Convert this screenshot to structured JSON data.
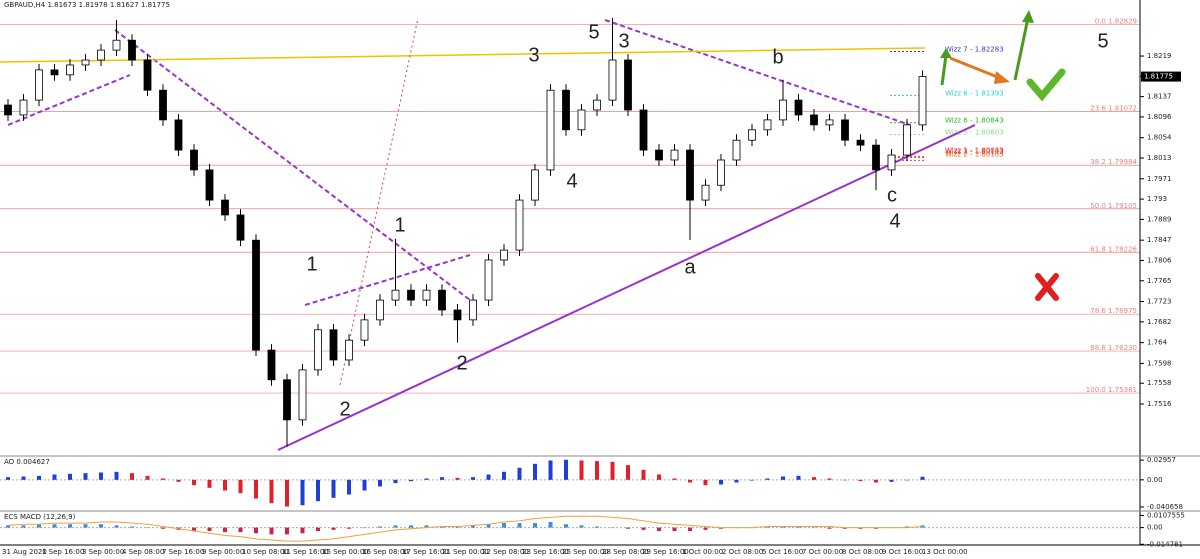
{
  "chart_data": {
    "type": "candlestick",
    "title": "GBPAUD,H4  1.81673 1.81978 1.81627 1.81775",
    "last_price": 1.81775,
    "up_color": "#ffffff",
    "down_color": "#000000",
    "ylim": [
      1.7413,
      1.8308
    ],
    "yticks": [
      1.8219,
      1.8178,
      1.8137,
      1.8096,
      1.8054,
      1.8013,
      1.7971,
      1.793,
      1.7889,
      1.7847,
      1.7806,
      1.7765,
      1.7723,
      1.7682,
      1.764,
      1.7598,
      1.7558,
      1.7516
    ],
    "open": [
      1.812,
      1.81,
      1.813,
      1.8191,
      1.8181,
      1.8201,
      1.8211,
      1.8231,
      1.8251,
      1.8211,
      1.815,
      1.809,
      1.8029,
      1.7989,
      1.7928,
      1.7898,
      1.7847,
      1.7625,
      1.7565,
      1.7484,
      1.7585,
      1.7666,
      1.7605,
      1.7645,
      1.7686,
      1.7726,
      1.7746,
      1.7726,
      1.7746,
      1.7706,
      1.7686,
      1.7726,
      1.7807,
      1.7827,
      1.7928,
      1.7989,
      1.815,
      1.807,
      1.811,
      1.813,
      1.8211,
      1.811,
      1.8029,
      1.8009,
      1.8029,
      1.7928,
      1.7958,
      1.8009,
      1.8049,
      1.807,
      1.809,
      1.813,
      1.81,
      1.808,
      1.809,
      1.8049,
      1.8039,
      1.7989,
      1.8019,
      1.808
    ],
    "high": [
      1.8132,
      1.8142,
      1.8203,
      1.8203,
      1.8213,
      1.8223,
      1.8243,
      1.8292,
      1.8263,
      1.8223,
      1.8162,
      1.8102,
      1.8041,
      1.8001,
      1.794,
      1.791,
      1.7859,
      1.7637,
      1.7577,
      1.7597,
      1.7678,
      1.7678,
      1.7657,
      1.7698,
      1.7738,
      1.785,
      1.7758,
      1.7758,
      1.7758,
      1.7718,
      1.7738,
      1.7819,
      1.7839,
      1.794,
      1.8001,
      1.8162,
      1.8162,
      1.8122,
      1.8142,
      1.8296,
      1.8223,
      1.8122,
      1.8041,
      1.8041,
      1.8041,
      1.797,
      1.8021,
      1.8061,
      1.8082,
      1.8102,
      1.8171,
      1.8142,
      1.8112,
      1.8102,
      1.8102,
      1.8061,
      1.8051,
      1.8031,
      1.8092,
      1.819
    ],
    "low": [
      1.8088,
      1.8088,
      1.8118,
      1.8169,
      1.8169,
      1.8189,
      1.8199,
      1.8219,
      1.8199,
      1.8138,
      1.8078,
      1.8017,
      1.7977,
      1.7916,
      1.7886,
      1.7835,
      1.7613,
      1.7553,
      1.743,
      1.7472,
      1.7573,
      1.7593,
      1.7593,
      1.7633,
      1.7674,
      1.7714,
      1.7714,
      1.7714,
      1.7694,
      1.764,
      1.7674,
      1.7714,
      1.7795,
      1.7815,
      1.7916,
      1.7977,
      1.8058,
      1.8058,
      1.8098,
      1.8118,
      1.8098,
      1.8017,
      1.7997,
      1.7997,
      1.7847,
      1.7916,
      1.7946,
      1.7997,
      1.8037,
      1.8058,
      1.8078,
      1.8088,
      1.8068,
      1.8068,
      1.8037,
      1.8027,
      1.7948,
      1.7977,
      1.8007,
      1.8068
    ],
    "close": [
      1.81,
      1.813,
      1.8191,
      1.8181,
      1.8201,
      1.8211,
      1.8231,
      1.8251,
      1.8211,
      1.815,
      1.809,
      1.8029,
      1.7989,
      1.7928,
      1.7898,
      1.7847,
      1.7625,
      1.7565,
      1.7484,
      1.7585,
      1.7666,
      1.7605,
      1.7645,
      1.7686,
      1.7726,
      1.7746,
      1.7726,
      1.7746,
      1.7706,
      1.7686,
      1.7726,
      1.7807,
      1.7827,
      1.7928,
      1.7989,
      1.815,
      1.807,
      1.811,
      1.813,
      1.8211,
      1.811,
      1.8029,
      1.8009,
      1.8029,
      1.7928,
      1.7958,
      1.8009,
      1.8049,
      1.807,
      1.809,
      1.813,
      1.81,
      1.808,
      1.809,
      1.8049,
      1.8039,
      1.7989,
      1.8019,
      1.808,
      1.81775
    ],
    "xtick_labels": [
      "31 Aug 2020",
      "1 Sep 16:00",
      "3 Sep 00:00",
      "4 Sep 08:00",
      "7 Sep 16:00",
      "9 Sep 00:00",
      "10 Sep 08:00",
      "11 Sep 16:00",
      "15 Sep 00:00",
      "16 Sep 08:00",
      "17 Sep 16:00",
      "21 Sep 00:00",
      "22 Sep 08:00",
      "23 Sep 16:00",
      "25 Sep 00:00",
      "28 Sep 08:00",
      "29 Sep 16:00",
      "1 Oct 00:00",
      "2 Oct 08:00",
      "5 Oct 16:00",
      "7 Oct 00:00",
      "8 Oct 08:00",
      "9 Oct 16:00",
      "13 Oct 00:00"
    ],
    "fib_levels": [
      {
        "value": 1.82829,
        "label": "0.0 1.82829"
      },
      {
        "value": 1.81072,
        "label": "23.6 1.81072"
      },
      {
        "value": 1.79984,
        "label": "38.2 1.79984"
      },
      {
        "value": 1.79105,
        "label": "50.0 1.79105"
      },
      {
        "value": 1.78226,
        "label": "61.8 1.78226"
      },
      {
        "value": 1.76975,
        "label": "78.6 1.76975"
      },
      {
        "value": 1.7623,
        "label": "88.6 1.76230"
      },
      {
        "value": 1.75381,
        "label": "100.0 1.75381"
      }
    ],
    "fib_color": "#f08080",
    "wizz_levels": [
      {
        "value": 1.82283,
        "label": "Wizz 7 - 1.82283",
        "color": "#3333cc"
      },
      {
        "value": 1.81393,
        "label": "Wizz 6 - 1.81393",
        "color": "#33cccc"
      },
      {
        "value": 1.80843,
        "label": "Wizz 6 - 1.80843",
        "color": "#22bb22"
      },
      {
        "value": 1.80603,
        "label": "Wizz 5 - 1.80603",
        "color": "#88dd88"
      },
      {
        "value": 1.80163,
        "label": "Wizz 2 - 1.80163",
        "color": "#ff6600"
      },
      {
        "value": 1.80143,
        "label": "Wizz 3 - 1.80143",
        "color": "#dd3333"
      },
      {
        "value": 1.80083,
        "label": "Wizz 1 - 1.80083",
        "color": "#ee4444"
      }
    ],
    "annotations": [
      "1",
      "2",
      "3",
      "4",
      "5",
      "1",
      "2",
      "3",
      "4",
      "5",
      "a",
      "b",
      "c"
    ],
    "ao": {
      "title": "AO 0.004627",
      "ylim": [
        -0.0452,
        0.0342
      ],
      "yticks": [
        0.02957,
        {
          "value": 0,
          "label": "0.00"
        },
        -0.040658
      ],
      "up_color": "#1f3fd8",
      "down_color": "#e0202a",
      "values": [
        0.004,
        0.005,
        0.006,
        0.008,
        0.009,
        0.01,
        0.011,
        0.012,
        0.01,
        0.006,
        0.002,
        -0.003,
        -0.008,
        -0.012,
        -0.016,
        -0.02,
        -0.028,
        -0.035,
        -0.04,
        -0.038,
        -0.032,
        -0.027,
        -0.022,
        -0.016,
        -0.01,
        -0.005,
        -0.002,
        0.002,
        0.004,
        0.003,
        0.004,
        0.008,
        0.012,
        0.018,
        0.024,
        0.029,
        0.03,
        0.029,
        0.028,
        0.027,
        0.022,
        0.015,
        0.008,
        0.002,
        -0.004,
        -0.008,
        -0.007,
        -0.004,
        -0.001,
        0.002,
        0.005,
        0.006,
        0.004,
        0.002,
        0.0,
        -0.002,
        -0.004,
        -0.003,
        0.0,
        0.004627
      ]
    },
    "macd": {
      "title": "ECS MACD (12,26,9)",
      "ylim": [
        -0.0154,
        0.0138
      ],
      "yticks": [
        0.0107555,
        {
          "value": 0,
          "label": "0.00"
        },
        -0.014781
      ],
      "up_color": "#3a8fe0",
      "down_color": "#cc2244",
      "signal_color": "#f0a040",
      "histogram": [
        0.002,
        0.002,
        0.003,
        0.003,
        0.003,
        0.003,
        0.003,
        0.002,
        0.001,
        0.0,
        -0.001,
        -0.002,
        -0.003,
        -0.003,
        -0.004,
        -0.004,
        -0.005,
        -0.006,
        -0.006,
        -0.005,
        -0.003,
        -0.002,
        -0.001,
        0.0,
        0.001,
        0.002,
        0.002,
        0.002,
        0.001,
        0.001,
        0.002,
        0.003,
        0.004,
        0.004,
        0.004,
        0.005,
        0.003,
        0.002,
        0.001,
        0.0,
        -0.001,
        -0.002,
        -0.003,
        -0.003,
        -0.003,
        -0.002,
        -0.001,
        0.0,
        0.0,
        0.001,
        0.001,
        0.001,
        0.0,
        -0.001,
        -0.001,
        -0.001,
        -0.001,
        0.0,
        0.001,
        0.002
      ],
      "signal": [
        0.002,
        0.003,
        0.003,
        0.004,
        0.004,
        0.004,
        0.005,
        0.005,
        0.004,
        0.003,
        0.001,
        -0.001,
        -0.003,
        -0.005,
        -0.007,
        -0.008,
        -0.01,
        -0.011,
        -0.012,
        -0.012,
        -0.011,
        -0.01,
        -0.008,
        -0.006,
        -0.004,
        -0.002,
        -0.001,
        0.0,
        0.001,
        0.001,
        0.002,
        0.003,
        0.005,
        0.006,
        0.008,
        0.009,
        0.01,
        0.01,
        0.01,
        0.009,
        0.008,
        0.006,
        0.004,
        0.003,
        0.002,
        0.001,
        0.0,
        0.0,
        0.0,
        0.001,
        0.001,
        0.001,
        0.001,
        0.001,
        0.0,
        0.0,
        0.0,
        0.0,
        0.0,
        0.001
      ]
    }
  }
}
